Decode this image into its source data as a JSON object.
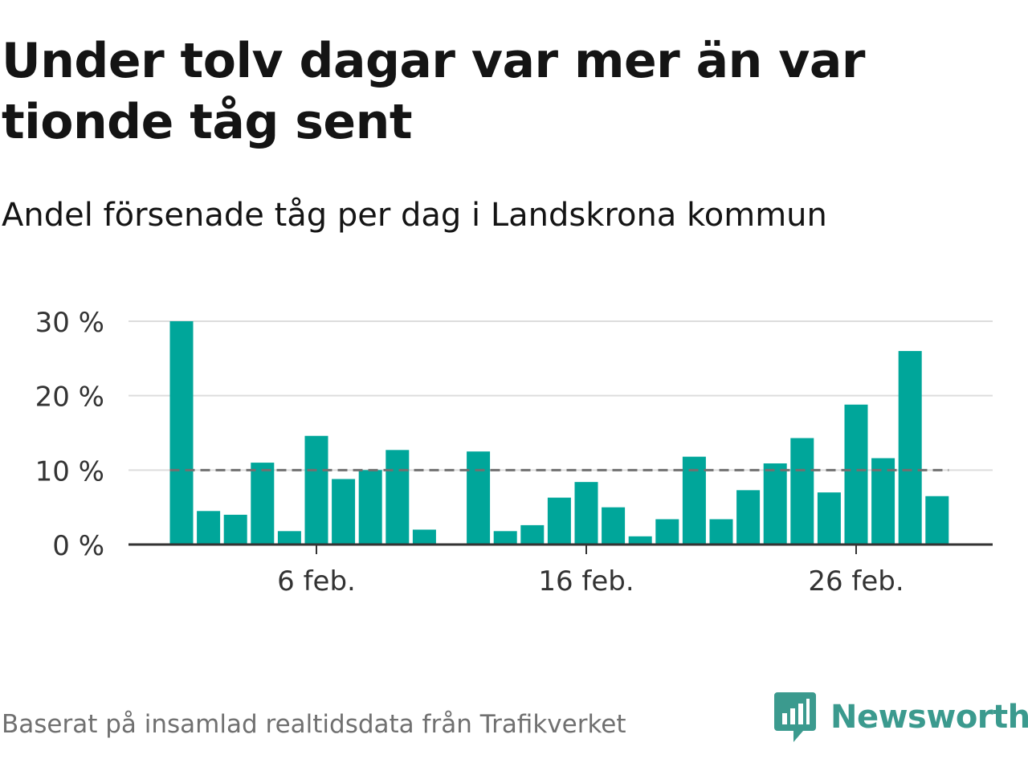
{
  "title": "Under tolv dagar var mer än var tionde tåg sent",
  "subtitle": "Andel försenade tåg per dag i Landskrona kommun",
  "footer": {
    "source": "Baserat på insamlad realtidsdata från Trafikverket",
    "brand": "Newsworthy"
  },
  "colors": {
    "bar": "#00a69a",
    "reference_line": "#707070",
    "grid": "#dddddd",
    "axis": "#333333",
    "brand": "#3b9a8e"
  },
  "icons": {
    "brand_logo": "newsworthy-logo-icon"
  },
  "chart_data": {
    "type": "bar",
    "x": [
      "2021-02-01",
      "2021-02-02",
      "2021-02-03",
      "2021-02-04",
      "2021-02-05",
      "2021-02-06",
      "2021-02-07",
      "2021-02-08",
      "2021-02-09",
      "2021-02-10",
      "2021-02-11",
      "2021-02-12",
      "2021-02-13",
      "2021-02-14",
      "2021-02-15",
      "2021-02-16",
      "2021-02-17",
      "2021-02-18",
      "2021-02-19",
      "2021-02-20",
      "2021-02-21",
      "2021-02-22",
      "2021-02-23",
      "2021-02-24",
      "2021-02-25",
      "2021-02-26",
      "2021-02-27",
      "2021-02-28",
      "2021-03-01"
    ],
    "values": [
      30,
      4.5,
      4,
      11,
      1.8,
      14.6,
      8.8,
      10,
      12.7,
      2,
      null,
      12.5,
      1.8,
      2.6,
      6.3,
      8.4,
      5,
      1.1,
      3.4,
      11.8,
      3.4,
      7.3,
      10.9,
      14.3,
      7,
      18.8,
      11.6,
      26,
      6.5
    ],
    "x_ticks": [
      "6 feb.",
      "16 feb.",
      "26 feb."
    ],
    "x_tick_dates": [
      "2021-02-06",
      "2021-02-16",
      "2021-02-26"
    ],
    "y_ticks": [
      "0 %",
      "10 %",
      "20 %",
      "30 %"
    ],
    "y_tick_values": [
      0,
      10,
      20,
      30
    ],
    "ylim": [
      0,
      30
    ],
    "reference_line": 10,
    "grid": true,
    "xlabel": "",
    "ylabel": ""
  }
}
